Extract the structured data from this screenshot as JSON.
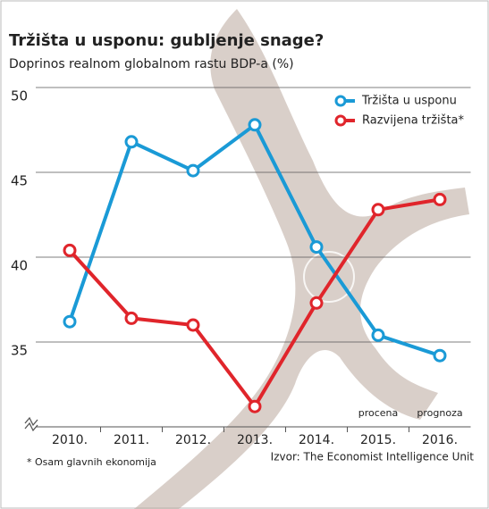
{
  "chart_data": {
    "type": "line",
    "title": "Tržišta u usponu: gubljenje snage?",
    "subtitle": "Doprinos realnom globalnom rastu BDP-a (%)",
    "categories": [
      "2010.",
      "2011.",
      "2012.",
      "2013.",
      "2014.",
      "2015.",
      "2016."
    ],
    "category_notes": [
      null,
      null,
      null,
      null,
      null,
      "procena",
      "prognoza"
    ],
    "series": [
      {
        "name": "Tržišta u usponu",
        "color": "#1a9ad6",
        "values": [
          36.2,
          46.8,
          45.1,
          47.8,
          40.6,
          35.4,
          34.2
        ]
      },
      {
        "name": "Razvijena tržišta*",
        "color": "#e0252b",
        "values": [
          40.4,
          36.4,
          36.0,
          31.2,
          37.3,
          42.8,
          43.4
        ]
      }
    ],
    "ylim": [
      30,
      50
    ],
    "yticks": [
      35,
      40,
      45,
      50
    ],
    "grid": true,
    "legend": "upper right",
    "footnote": "* Osam glavnih ekonomija",
    "source": "Izvor: The Economist Intelligence Unit"
  }
}
